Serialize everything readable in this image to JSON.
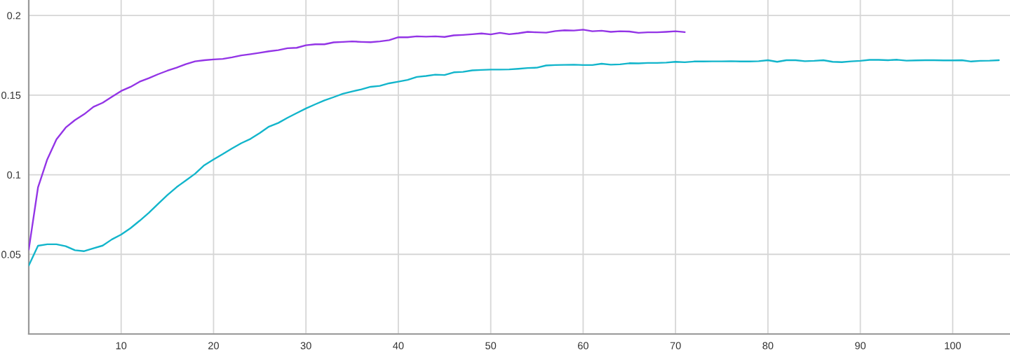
{
  "chart_data": {
    "type": "line",
    "xlim": [
      0,
      106.2
    ],
    "ylim": [
      0,
      0.2097
    ],
    "xticks": [
      10,
      20,
      30,
      40,
      50,
      60,
      70,
      80,
      90,
      100
    ],
    "yticks": [
      0.05,
      0.1,
      0.15,
      0.2
    ],
    "grid": true,
    "marker": "none",
    "line_style": "solid",
    "series": [
      {
        "color": "#9334e6",
        "x": [
          0,
          1,
          2,
          3,
          4,
          5,
          6,
          7,
          8,
          9,
          10,
          11,
          12,
          13,
          14,
          15,
          16,
          17,
          18,
          19,
          20,
          21,
          22,
          23,
          24,
          25,
          26,
          27,
          28,
          29,
          30,
          31,
          32,
          33,
          34,
          35,
          36,
          37,
          38,
          39,
          40,
          41,
          42,
          43,
          44,
          45,
          46,
          47,
          48,
          49,
          50,
          51,
          52,
          53,
          54,
          55,
          56,
          57,
          58,
          59,
          60,
          61,
          62,
          63,
          64,
          65,
          66,
          67,
          68,
          69,
          70,
          71
        ],
        "values": [
          0.053,
          0.092,
          0.1096,
          0.1222,
          0.1296,
          0.1343,
          0.138,
          0.1426,
          0.1452,
          0.1489,
          0.1526,
          0.1551,
          0.1584,
          0.1606,
          0.1631,
          0.1653,
          0.1672,
          0.1694,
          0.1712,
          0.1719,
          0.1724,
          0.1727,
          0.1737,
          0.1749,
          0.1757,
          0.1766,
          0.1775,
          0.1782,
          0.1794,
          0.1797,
          0.1813,
          0.1819,
          0.1819,
          0.1831,
          0.1834,
          0.1837,
          0.1834,
          0.1832,
          0.1837,
          0.1845,
          0.1863,
          0.1863,
          0.1869,
          0.1867,
          0.1869,
          0.1865,
          0.1875,
          0.1878,
          0.1882,
          0.1887,
          0.1881,
          0.1891,
          0.1882,
          0.1888,
          0.1897,
          0.1894,
          0.1892,
          0.1902,
          0.1907,
          0.1905,
          0.1911,
          0.1901,
          0.1904,
          0.1897,
          0.1901,
          0.1899,
          0.1891,
          0.1894,
          0.1894,
          0.1897,
          0.1901,
          0.1895
        ]
      },
      {
        "color": "#12b5cb",
        "x": [
          0,
          1,
          2,
          3,
          4,
          5,
          6,
          7,
          8,
          9,
          10,
          11,
          12,
          13,
          14,
          15,
          16,
          17,
          18,
          19,
          20,
          21,
          22,
          23,
          24,
          25,
          26,
          27,
          28,
          29,
          30,
          31,
          32,
          33,
          34,
          35,
          36,
          37,
          38,
          39,
          40,
          41,
          42,
          43,
          44,
          45,
          46,
          47,
          48,
          49,
          50,
          51,
          52,
          53,
          54,
          55,
          56,
          57,
          58,
          59,
          60,
          61,
          62,
          63,
          64,
          65,
          66,
          67,
          68,
          69,
          70,
          71,
          72,
          73,
          74,
          75,
          76,
          77,
          78,
          79,
          80,
          81,
          82,
          83,
          84,
          85,
          86,
          87,
          88,
          89,
          90,
          91,
          92,
          93,
          94,
          95,
          96,
          97,
          98,
          99,
          100,
          101,
          102,
          103,
          104,
          105
        ],
        "values": [
          0.043,
          0.0554,
          0.0563,
          0.0563,
          0.0551,
          0.0526,
          0.052,
          0.0538,
          0.0555,
          0.0594,
          0.0624,
          0.0664,
          0.0711,
          0.0761,
          0.0817,
          0.0872,
          0.0922,
          0.0964,
          0.1006,
          0.106,
          0.1096,
          0.113,
          0.1165,
          0.1198,
          0.1225,
          0.1262,
          0.1302,
          0.1325,
          0.1357,
          0.1387,
          0.1416,
          0.1442,
          0.1467,
          0.1487,
          0.1508,
          0.1523,
          0.1536,
          0.1552,
          0.1558,
          0.1574,
          0.1584,
          0.1595,
          0.1614,
          0.162,
          0.1628,
          0.1626,
          0.1643,
          0.1646,
          0.1655,
          0.1658,
          0.166,
          0.166,
          0.1661,
          0.1665,
          0.167,
          0.1672,
          0.1686,
          0.1689,
          0.169,
          0.1691,
          0.1689,
          0.1689,
          0.1697,
          0.1691,
          0.1693,
          0.17,
          0.1699,
          0.1702,
          0.1702,
          0.1704,
          0.1709,
          0.1706,
          0.1711,
          0.1711,
          0.1712,
          0.1712,
          0.1713,
          0.1711,
          0.1711,
          0.1713,
          0.1719,
          0.1709,
          0.1719,
          0.1719,
          0.1713,
          0.1715,
          0.1719,
          0.1709,
          0.1707,
          0.1712,
          0.1715,
          0.1721,
          0.1721,
          0.1719,
          0.1722,
          0.1716,
          0.1718,
          0.1719,
          0.1719,
          0.1718,
          0.1718,
          0.1719,
          0.1711,
          0.1715,
          0.1716,
          0.1719
        ]
      }
    ]
  }
}
